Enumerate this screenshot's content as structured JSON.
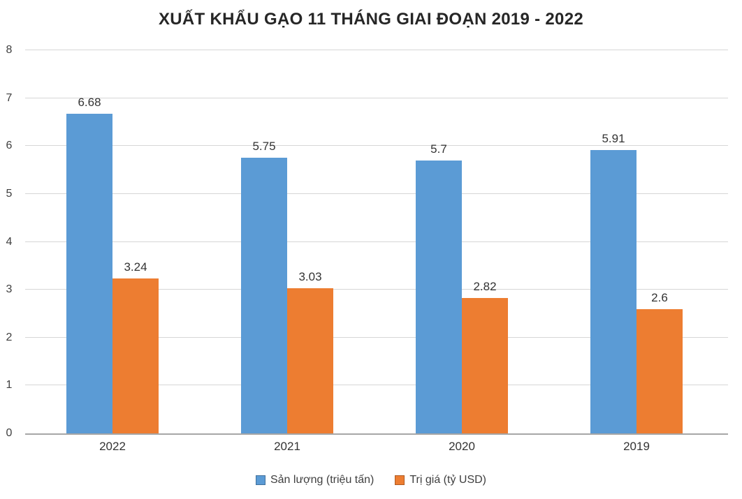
{
  "chart_data": {
    "type": "bar",
    "title": "XUẤT KHẨU GẠO 11 THÁNG GIAI ĐOẠN 2019 - 2022",
    "categories": [
      "2022",
      "2021",
      "2020",
      "2019"
    ],
    "series": [
      {
        "name": "Sản lượng (triệu tấn)",
        "color": "#5B9BD5",
        "border_color": "#41719C",
        "values": [
          6.68,
          5.75,
          5.7,
          5.91
        ]
      },
      {
        "name": "Trị giá (tỷ USD)",
        "color": "#ED7D31",
        "border_color": "#AE5A21",
        "values": [
          3.24,
          3.03,
          2.82,
          2.6
        ]
      }
    ],
    "xlabel": "",
    "ylabel": "",
    "ylim": [
      0,
      8
    ],
    "yticks": [
      0,
      1,
      2,
      3,
      4,
      5,
      6,
      7,
      8
    ],
    "grid": true,
    "value_labels_shown": true,
    "legend_position": "bottom",
    "styles": {
      "background": "#ffffff",
      "gridline_color": "#d6d6d6",
      "axis_line_color": "#a6a6a6",
      "title_color": "#262626",
      "label_color": "#333333"
    }
  }
}
